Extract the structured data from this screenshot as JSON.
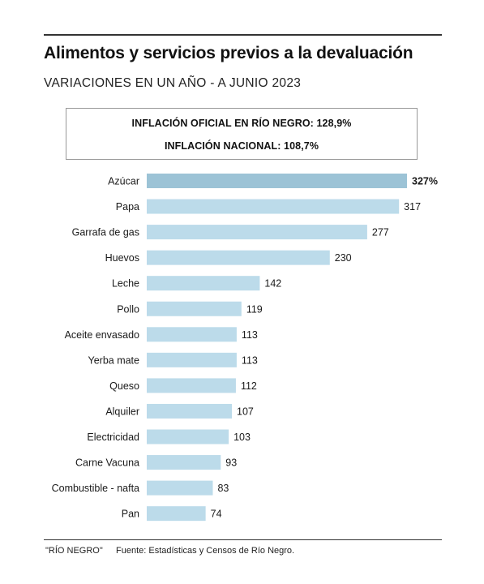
{
  "header": {
    "title": "Alimentos y servicios previos a la devaluación",
    "subtitle": "VARIACIONES EN UN AÑO - A JUNIO 2023"
  },
  "infobox": {
    "line1": "INFLACIÓN OFICIAL EN RÍO NEGRO: 128,9%",
    "line2": "INFLACIÓN NACIONAL: 108,7%"
  },
  "chart_data": {
    "type": "bar",
    "orientation": "horizontal",
    "categories": [
      "Azúcar",
      "Papa",
      "Garrafa de gas",
      "Huevos",
      "Leche",
      "Pollo",
      "Aceite envasado",
      "Yerba mate",
      "Queso",
      "Alquiler",
      "Electricidad",
      "Carne Vacuna",
      "Combustible - nafta",
      "Pan"
    ],
    "values": [
      327,
      317,
      277,
      230,
      142,
      119,
      113,
      113,
      112,
      107,
      103,
      93,
      83,
      74
    ],
    "value_labels": [
      "327%",
      "317",
      "277",
      "230",
      "142",
      "119",
      "113",
      "113",
      "112",
      "107",
      "103",
      "93",
      "83",
      "74"
    ],
    "highlight_index": 0,
    "colors": {
      "bar": "#bcdbea",
      "highlight": "#9cc3d6"
    },
    "xlim": [
      0,
      327
    ],
    "grid": false,
    "legend": "none"
  },
  "footer": {
    "credit": "\"RÍO NEGRO\"",
    "source": "Fuente: Estadísticas y Censos de Río Negro."
  }
}
